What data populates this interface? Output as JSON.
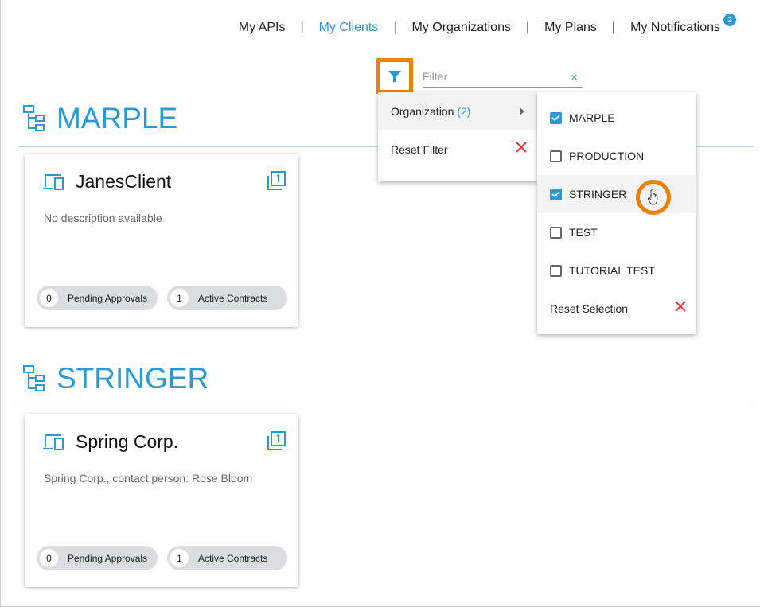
{
  "nav": {
    "items": [
      {
        "label": "My APIs"
      },
      {
        "label": "My Clients",
        "active": true
      },
      {
        "label": "My Organizations"
      },
      {
        "label": "My Plans"
      },
      {
        "label": "My Notifications"
      }
    ],
    "separator": "|",
    "notification_count": "2"
  },
  "filter": {
    "placeholder": "Filter",
    "clear": "×"
  },
  "filter_menu": {
    "organization_label": "Organization",
    "organization_count": "(2)",
    "reset_filter": "Reset Filter"
  },
  "org_menu": {
    "items": [
      {
        "label": "MARPLE",
        "checked": true
      },
      {
        "label": "PRODUCTION",
        "checked": false
      },
      {
        "label": "STRINGER",
        "checked": true
      },
      {
        "label": "TEST",
        "checked": false
      },
      {
        "label": "TUTORIAL TEST",
        "checked": false
      }
    ],
    "reset_selection": "Reset Selection"
  },
  "sections": [
    {
      "title": "MARPLE",
      "client": {
        "name": "JanesClient",
        "description": "No description available",
        "pending": "0",
        "pending_label": "Pending Approvals",
        "active": "1",
        "active_label": "Active Contracts"
      }
    },
    {
      "title": "STRINGER",
      "client": {
        "name": "Spring Corp.",
        "description": "Spring Corp., contact person: Rose Bloom",
        "pending": "0",
        "pending_label": "Pending Approvals",
        "active": "1",
        "active_label": "Active Contracts"
      }
    }
  ],
  "colors": {
    "accent": "#2a9ad6",
    "highlight": "#f08000",
    "danger": "#d9323c"
  }
}
